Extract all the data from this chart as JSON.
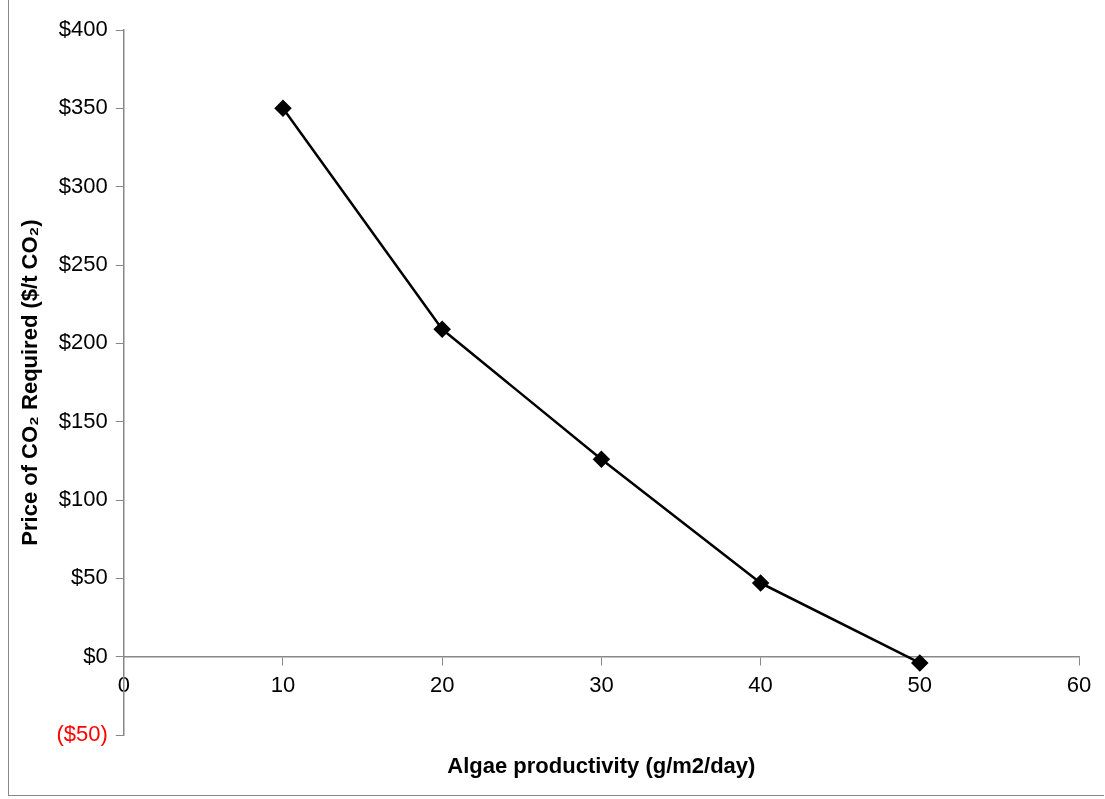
{
  "chart_data": {
    "type": "line",
    "xlabel": "Algae productivity (g/m2/day)",
    "ylabel": "Price of CO₂ Required ($/t CO₂)",
    "x": [
      10,
      20,
      30,
      40,
      50
    ],
    "series": [
      {
        "color": "#000000",
        "values": [
          350,
          209,
          126,
          47,
          -4
        ]
      }
    ],
    "xlim": [
      0,
      60
    ],
    "xticks": [
      0,
      10,
      20,
      30,
      40,
      50,
      60
    ],
    "ylim": [
      -50,
      400
    ],
    "yticks": [
      {
        "value": -50,
        "label": "($50)"
      },
      {
        "value": 0,
        "label": "$0"
      },
      {
        "value": 50,
        "label": "$50"
      },
      {
        "value": 100,
        "label": "$100"
      },
      {
        "value": 150,
        "label": "$150"
      },
      {
        "value": 200,
        "label": "$200"
      },
      {
        "value": 250,
        "label": "$250"
      },
      {
        "value": 300,
        "label": "$300"
      },
      {
        "value": 350,
        "label": "$350"
      },
      {
        "value": 400,
        "label": "$400"
      }
    ],
    "grid": false,
    "legend": false,
    "marker": "diamond",
    "line_style": "solid"
  }
}
